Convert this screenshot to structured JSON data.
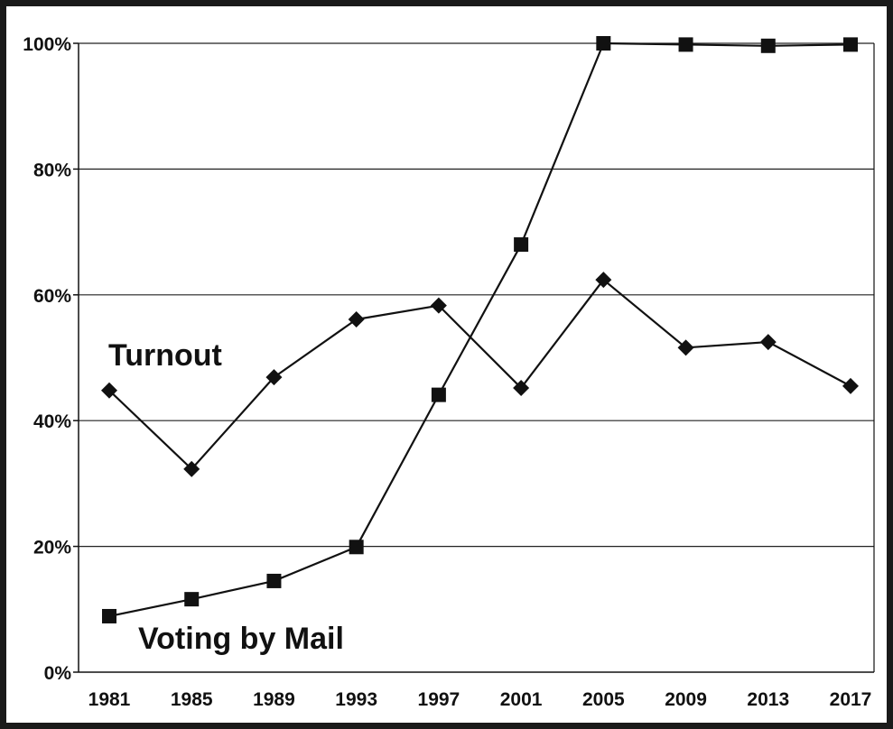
{
  "chart_data": {
    "type": "line",
    "title": "",
    "xlabel": "",
    "ylabel": "",
    "categories": [
      "1981",
      "1985",
      "1989",
      "1993",
      "1997",
      "2001",
      "2005",
      "2009",
      "2013",
      "2017"
    ],
    "y_tick_labels": [
      "0%",
      "20%",
      "40%",
      "60%",
      "80%",
      "100%"
    ],
    "ylim": [
      0,
      100
    ],
    "grid": "horizontal",
    "legend": "inline labels",
    "series": [
      {
        "name": "Turnout",
        "marker": "diamond",
        "values": [
          44.8,
          32.3,
          46.9,
          56.1,
          58.3,
          45.2,
          62.4,
          51.6,
          52.5,
          45.5
        ]
      },
      {
        "name": "Voting by Mail",
        "marker": "square",
        "values": [
          8.9,
          11.6,
          14.5,
          19.9,
          44.1,
          68.0,
          100.0,
          99.8,
          99.6,
          99.8
        ]
      }
    ],
    "colors": {
      "line": "#111111",
      "grid": "#222222",
      "frame": "#1a1a1a"
    }
  }
}
